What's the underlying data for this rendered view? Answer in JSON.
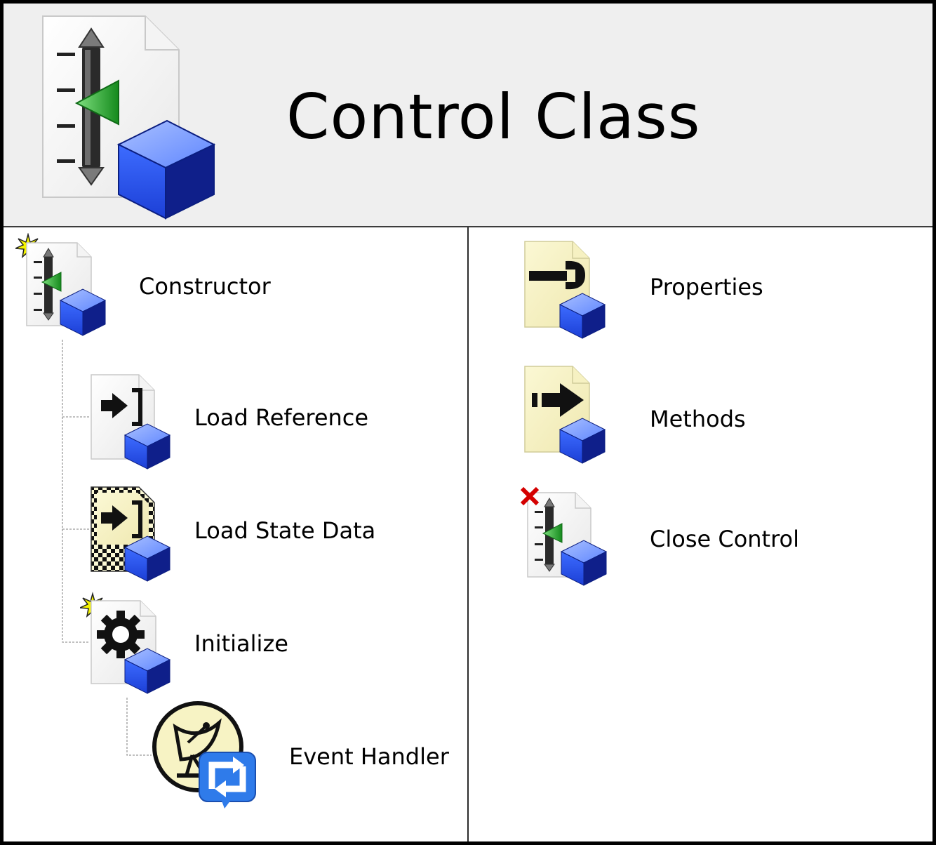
{
  "title": "Control Class",
  "left_items": [
    {
      "label": "Constructor",
      "icon": "control-constructor-icon"
    },
    {
      "label": "Load Reference",
      "icon": "load-reference-icon"
    },
    {
      "label": "Load State Data",
      "icon": "load-state-data-icon"
    },
    {
      "label": "Initialize",
      "icon": "initialize-gear-icon"
    },
    {
      "label": "Event Handler",
      "icon": "event-handler-satellite-icon"
    }
  ],
  "right_items": [
    {
      "label": "Properties",
      "icon": "properties-wrench-icon"
    },
    {
      "label": "Methods",
      "icon": "methods-arrow-icon"
    },
    {
      "label": "Close Control",
      "icon": "close-control-icon"
    }
  ],
  "colors": {
    "header_bg": "#efefef",
    "cube_blue": "#2e56e8",
    "note_yellow": "#f9f5c6",
    "green_arrow": "#2fa33a"
  }
}
